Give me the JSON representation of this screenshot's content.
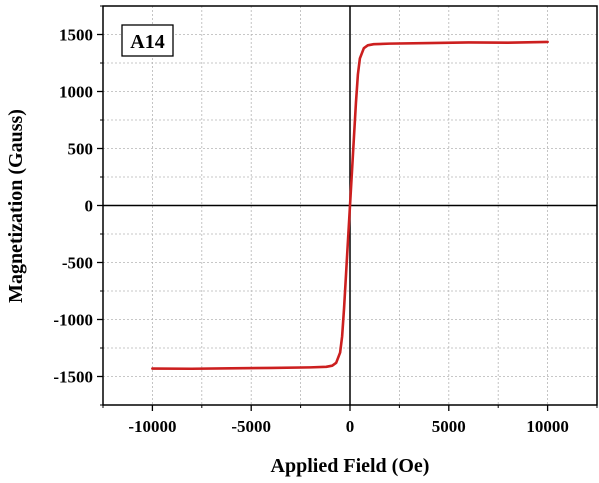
{
  "chart_data": {
    "type": "line",
    "panel_label": "A14",
    "xlabel": "Applied Field (Oe)",
    "ylabel": "Magnetization (Gauss)",
    "xlim": [
      -12500,
      12500
    ],
    "ylim": [
      -1750,
      1750
    ],
    "x_ticks": [
      -10000,
      -5000,
      0,
      5000,
      10000
    ],
    "x_tick_labels": [
      "-10000",
      "-5000",
      "0",
      "5000",
      "10000"
    ],
    "y_ticks": [
      1500,
      1000,
      500,
      0,
      -500,
      -1000,
      -1500
    ],
    "y_tick_labels": [
      "1500",
      "1000",
      "500",
      "0",
      "-500",
      "-1000",
      "-1500"
    ],
    "grid": true,
    "series": [
      {
        "color": "#cc1f1f",
        "x": [
          -10000,
          -8000,
          -6000,
          -4000,
          -2000,
          -1200,
          -900,
          -700,
          -500,
          -400,
          -300,
          -200,
          -100,
          0,
          100,
          200,
          300,
          400,
          500,
          700,
          900,
          1200,
          2000,
          4000,
          6000,
          8000,
          10000
        ],
        "y": [
          -1430,
          -1432,
          -1428,
          -1425,
          -1420,
          -1415,
          -1405,
          -1380,
          -1290,
          -1150,
          -900,
          -600,
          -300,
          0,
          300,
          600,
          900,
          1150,
          1290,
          1380,
          1405,
          1415,
          1420,
          1425,
          1430,
          1428,
          1435
        ]
      }
    ]
  }
}
